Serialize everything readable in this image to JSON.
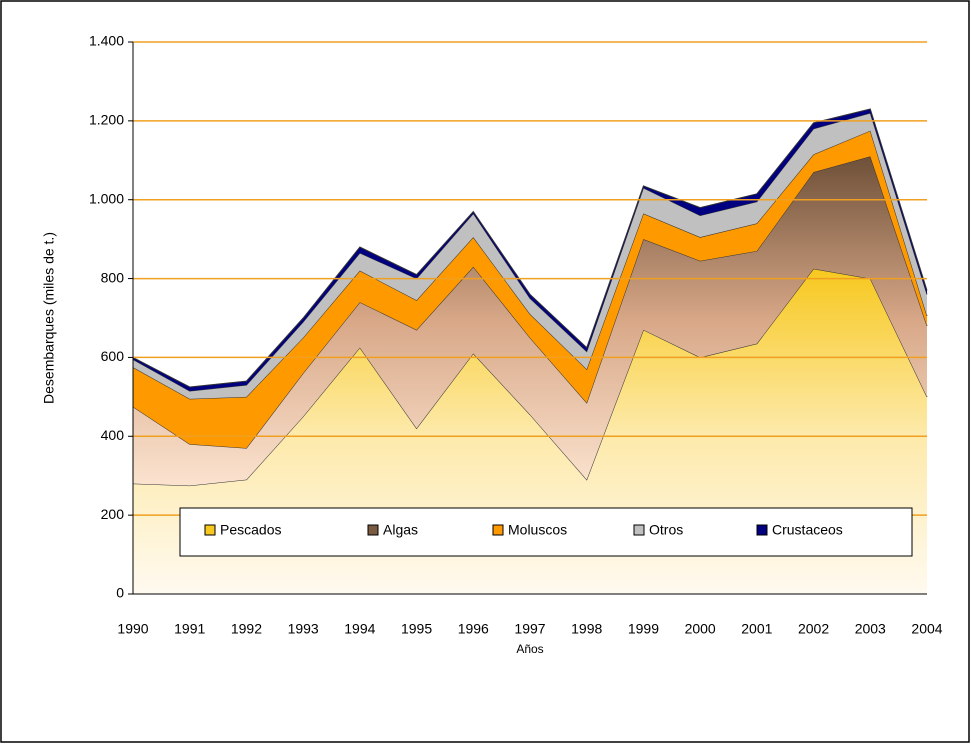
{
  "chart_data": {
    "type": "stacked_area",
    "y_label": "Desembarques (miles de t.)",
    "x_label": "Años",
    "categories": [
      "1990",
      "1991",
      "1992",
      "1993",
      "1994",
      "1995",
      "1996",
      "1997",
      "1998",
      "1999",
      "2000",
      "2001",
      "2002",
      "2003",
      "2004"
    ],
    "series": [
      {
        "name": "Pescados",
        "color": "#f7c81e",
        "values": [
          280,
          275,
          290,
          450,
          625,
          420,
          610,
          455,
          290,
          670,
          600,
          635,
          825,
          800,
          500
        ]
      },
      {
        "name": "Algas",
        "color": "#7a5a40",
        "values": [
          195,
          105,
          80,
          110,
          115,
          250,
          220,
          195,
          195,
          230,
          245,
          235,
          245,
          310,
          180
        ]
      },
      {
        "name": "Moluscos",
        "color": "#ff9900",
        "values": [
          100,
          115,
          130,
          90,
          80,
          75,
          75,
          60,
          85,
          65,
          60,
          70,
          45,
          65,
          25
        ]
      },
      {
        "name": "Otros",
        "color": "#c0c0c0",
        "values": [
          20,
          20,
          30,
          40,
          45,
          55,
          60,
          40,
          45,
          65,
          55,
          55,
          65,
          45,
          55
        ]
      },
      {
        "name": "Crustaceos",
        "color": "#000080",
        "values": [
          5,
          10,
          10,
          10,
          15,
          10,
          5,
          10,
          10,
          5,
          20,
          20,
          15,
          10,
          10
        ]
      }
    ],
    "ylim": [
      0,
      1400
    ],
    "yticks": [
      0,
      200,
      400,
      600,
      800,
      {
        "value": 1000,
        "label": "1.000"
      },
      {
        "value": 1200,
        "label": "1.200"
      },
      {
        "value": 1400,
        "label": "1.400"
      }
    ],
    "grid": true,
    "grid_color": "#f0a020"
  }
}
